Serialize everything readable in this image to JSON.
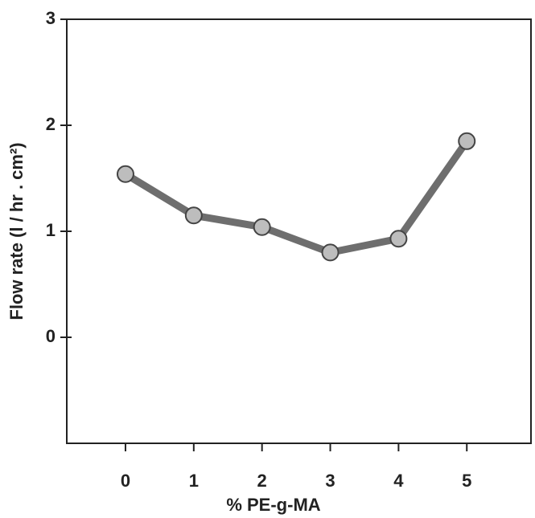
{
  "chart_data": {
    "type": "line",
    "x_label": "% PE-g-MA",
    "y_label": "Flow rate (l / hr . cm²)",
    "x": [
      0,
      1,
      2,
      3,
      4,
      5
    ],
    "series": [
      {
        "color": "#6e6e6e",
        "values": [
          1.54,
          1.15,
          1.04,
          0.8,
          0.93,
          1.85
        ]
      }
    ],
    "xlim": [
      -0.86,
      5.94
    ],
    "xticks": [
      0,
      1,
      2,
      3,
      4,
      5
    ],
    "ylim": [
      -1,
      3
    ],
    "yticks": [
      0,
      1,
      2,
      3
    ]
  }
}
